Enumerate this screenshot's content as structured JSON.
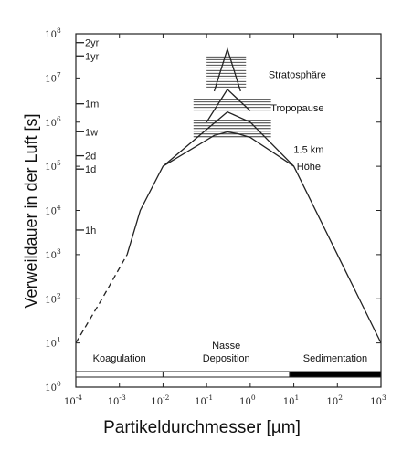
{
  "chart_data": {
    "type": "line",
    "xlabel": "Partikeldurchmesser [µm]",
    "ylabel": "Verweildauer in der Luft [s]",
    "xscale": "log",
    "yscale": "log",
    "xlim": [
      0.0001,
      1000
    ],
    "ylim": [
      1,
      100000000
    ],
    "x_ticks": [
      {
        "value": 0.0001,
        "base": "10",
        "exp": "-4"
      },
      {
        "value": 0.001,
        "base": "10",
        "exp": "-3"
      },
      {
        "value": 0.01,
        "base": "10",
        "exp": "-2"
      },
      {
        "value": 0.1,
        "base": "10",
        "exp": "-1"
      },
      {
        "value": 1,
        "base": "10",
        "exp": "0"
      },
      {
        "value": 10,
        "base": "10",
        "exp": "1"
      },
      {
        "value": 100,
        "base": "10",
        "exp": "2"
      },
      {
        "value": 1000,
        "base": "10",
        "exp": "3"
      }
    ],
    "y_ticks": [
      {
        "value": 1,
        "base": "10",
        "exp": "0"
      },
      {
        "value": 10,
        "base": "10",
        "exp": "1"
      },
      {
        "value": 100,
        "base": "10",
        "exp": "2"
      },
      {
        "value": 1000,
        "base": "10",
        "exp": "3"
      },
      {
        "value": 10000,
        "base": "10",
        "exp": "4"
      },
      {
        "value": 100000,
        "base": "10",
        "exp": "5"
      },
      {
        "value": 1000000,
        "base": "10",
        "exp": "6"
      },
      {
        "value": 10000000,
        "base": "10",
        "exp": "7"
      },
      {
        "value": 100000000,
        "base": "10",
        "exp": "8"
      }
    ],
    "time_marks": [
      {
        "label": "2yr",
        "y": 63000000
      },
      {
        "label": "1yr",
        "y": 31500000
      },
      {
        "label": "1m",
        "y": 2600000
      },
      {
        "label": "1w",
        "y": 605000
      },
      {
        "label": "2d",
        "y": 173000
      },
      {
        "label": "1d",
        "y": 86400
      },
      {
        "label": "1h",
        "y": 3600
      }
    ],
    "series": [
      {
        "points": [
          [
            0.0001,
            10
          ],
          [
            0.0004,
            100
          ],
          [
            0.0015,
            1000
          ]
        ],
        "style": "dashed"
      },
      {
        "points": [
          [
            0.0015,
            1000
          ],
          [
            0.003,
            10000
          ],
          [
            0.01,
            100000
          ],
          [
            0.15,
            500000
          ],
          [
            0.3,
            600000
          ],
          [
            0.5,
            550000
          ],
          [
            1,
            450000
          ],
          [
            10,
            100000
          ],
          [
            1000,
            10
          ]
        ],
        "style": "solid"
      },
      {
        "points": [
          [
            0.01,
            100000
          ],
          [
            0.3,
            1700000
          ],
          [
            1,
            1000000
          ],
          [
            10,
            100000
          ]
        ],
        "style": "solid"
      },
      {
        "points": [
          [
            0.1,
            1000000
          ],
          [
            0.3,
            5500000
          ],
          [
            1,
            1800000
          ]
        ],
        "style": "solid"
      },
      {
        "points": [
          [
            0.15,
            5000000
          ],
          [
            0.3,
            45000000
          ],
          [
            0.6,
            5000000
          ]
        ],
        "style": "solid"
      }
    ],
    "bands": [
      {
        "x": [
          0.1,
          0.8
        ],
        "y": [
          6000000,
          30000000
        ]
      },
      {
        "x": [
          0.05,
          3
        ],
        "y": [
          1700000,
          3300000
        ]
      },
      {
        "x": [
          0.05,
          3
        ],
        "y": [
          450000,
          1100000
        ]
      }
    ],
    "annotations": [
      {
        "text": "Stratosphäre",
        "x": 12,
        "y": 12000000
      },
      {
        "text": "Tropopause",
        "x": 12,
        "y": 2100000
      },
      {
        "text": "1.5 km",
        "x": 22,
        "y": 240000
      },
      {
        "text": "Höhe",
        "x": 22,
        "y": 100000
      }
    ],
    "regions": [
      {
        "label": "Koagulation",
        "x_from": 0.0001,
        "x_to": 0.01,
        "fill": "#ffffff"
      },
      {
        "label": "Nasse Deposition",
        "x_from": 0.01,
        "x_to": 8,
        "fill": "#ffffff"
      },
      {
        "label": "Sedimentation",
        "x_from": 8,
        "x_to": 1000,
        "fill": "#000000"
      }
    ],
    "grid": false
  }
}
